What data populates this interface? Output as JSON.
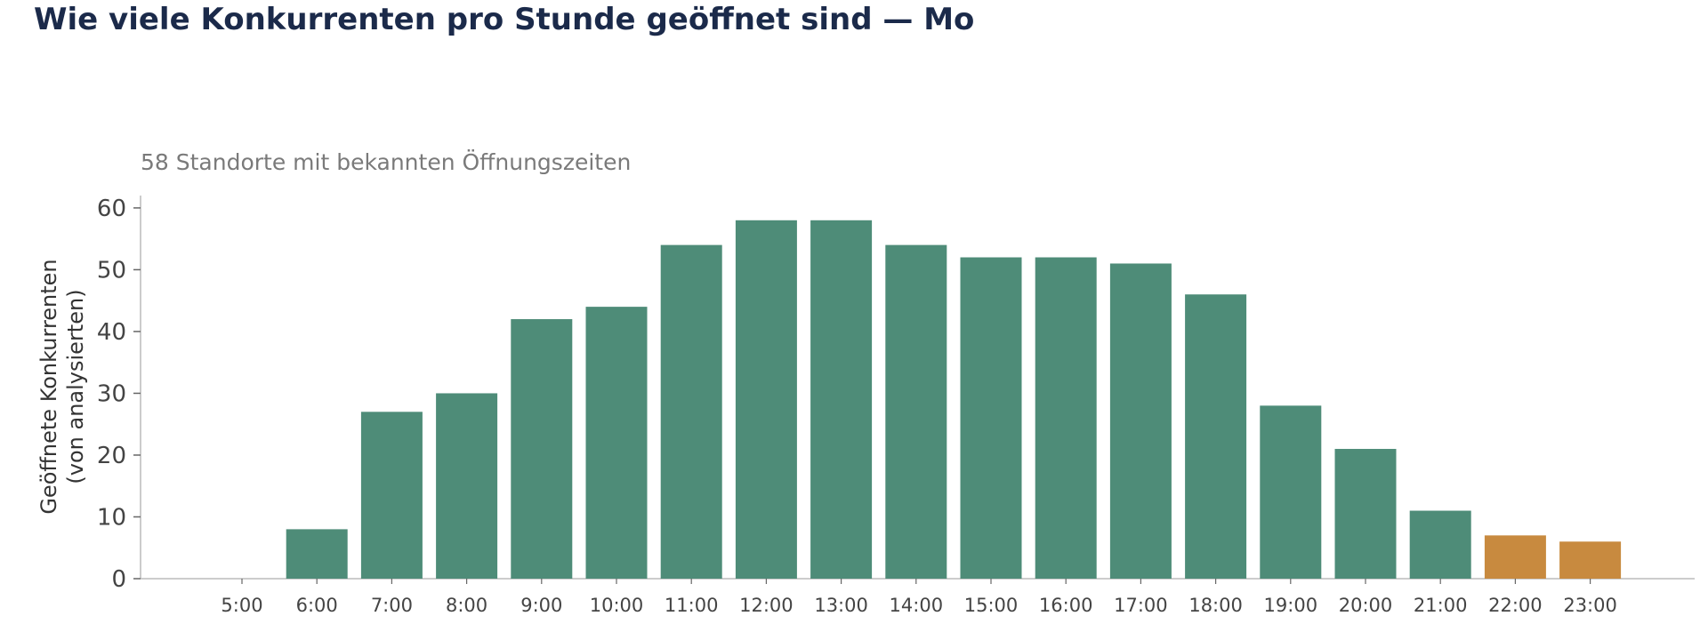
{
  "title": "Wie viele Konkurrenten pro Stunde geöffnet sind — Mo",
  "subtitle": "58 Standorte mit bekannten Öffnungszeiten",
  "colors": {
    "open": "#4e8c78",
    "late": "#c88a3f",
    "title": "#1b2a4a",
    "axis": "#bbbbbb",
    "tick_text": "#444444"
  },
  "chart_data": {
    "type": "bar",
    "title": "Wie viele Konkurrenten pro Stunde geöffnet sind — Mo",
    "subtitle": "58 Standorte mit bekannten Öffnungszeiten",
    "xlabel": "",
    "ylabel": [
      "Geöffnete Konkurrenten",
      "(von analysierten)"
    ],
    "categories": [
      "5:00",
      "6:00",
      "7:00",
      "8:00",
      "9:00",
      "10:00",
      "11:00",
      "12:00",
      "13:00",
      "14:00",
      "15:00",
      "16:00",
      "17:00",
      "18:00",
      "19:00",
      "20:00",
      "21:00",
      "22:00",
      "23:00"
    ],
    "values": [
      0,
      8,
      27,
      30,
      42,
      44,
      54,
      58,
      58,
      54,
      52,
      52,
      51,
      46,
      28,
      21,
      11,
      7,
      6
    ],
    "highlight": [
      false,
      false,
      false,
      false,
      false,
      false,
      false,
      false,
      false,
      false,
      false,
      false,
      false,
      false,
      false,
      false,
      false,
      true,
      true
    ],
    "ylim": [
      0,
      62
    ],
    "yticks": [
      0,
      10,
      20,
      30,
      40,
      50,
      60
    ],
    "grid": false,
    "legend": "none"
  }
}
